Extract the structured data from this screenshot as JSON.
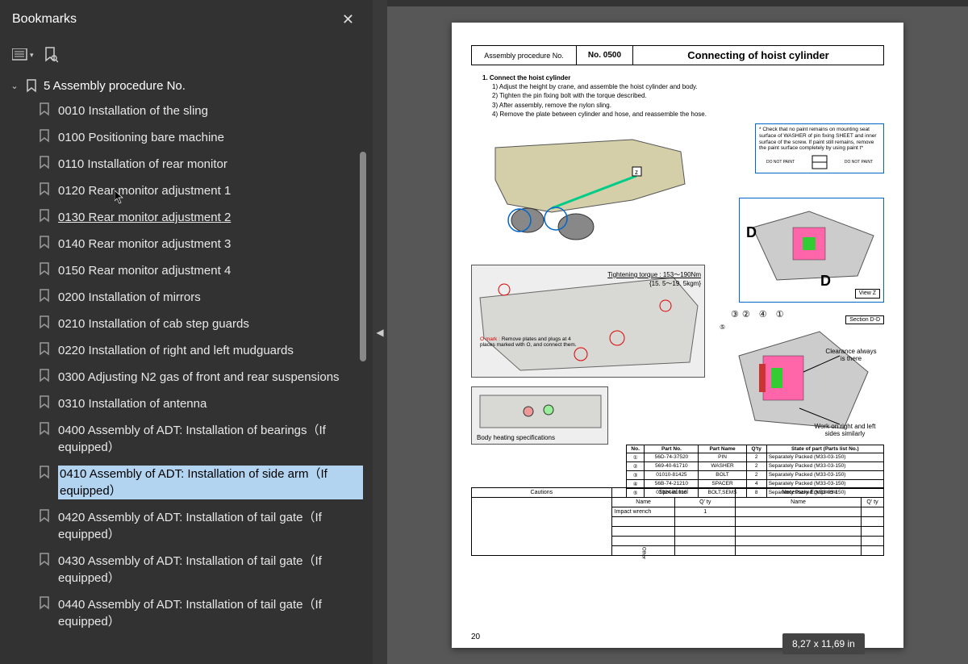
{
  "sidebar": {
    "title": "Bookmarks",
    "section": "5 Assembly procedure No.",
    "active_index": 11,
    "items": [
      {
        "label": "0010 Installation of the sling"
      },
      {
        "label": "0100 Positioning bare machine"
      },
      {
        "label": "0110 Installation of rear monitor"
      },
      {
        "label": "0120 Rear monitor adjustment 1"
      },
      {
        "label": "0130 Rear monitor adjustment 2",
        "hover": true
      },
      {
        "label": "0140 Rear monitor adjustment 3"
      },
      {
        "label": "0150 Rear monitor adjustment 4"
      },
      {
        "label": "0200 Installation of mirrors"
      },
      {
        "label": "0210 Installation of cab step guards"
      },
      {
        "label": "0220 Installation of right and left mudguards"
      },
      {
        "label": "0300 Adjusting N2 gas of front and rear suspensions"
      },
      {
        "label": "0310 Installation of antenna"
      },
      {
        "label": "0400 Assembly of ADT: Installation of bearings（If equipped）"
      },
      {
        "label": "0410 Assembly of ADT: Installation of side arm（If equipped）",
        "selected": true
      },
      {
        "label": "0420 Assembly of ADT: Installation of tail gate（If equipped）"
      },
      {
        "label": "0430 Assembly of ADT: Installation of tail gate（If equipped）"
      },
      {
        "label": "0440 Assembly of ADT: Installation of tail gate（If equipped）"
      }
    ]
  },
  "page": {
    "header": {
      "proc_label": "Assembly procedure No.",
      "proc_no": "No. 0500",
      "title": "Connecting of hoist cylinder"
    },
    "step_heading": "1. Connect the hoist cylinder",
    "steps": [
      "1) Adjust the height by crane, and assemble the hoist cylinder and body.",
      "2) Tighten the pin fixing bolt with the torque described.",
      "3) After assembly, remove the nylon sling.",
      "4) Remove the plate between cylinder and hose, and reassemble the hose."
    ],
    "note_paint": "* Check that no paint remains on mounting seat surface of WASHER of pin fixing SHEET and inner surface of the screw. If paint still remains, remove the paint surface completely by using paint t*",
    "no_paint": "DO NOT PAINT",
    "torque": {
      "label": "Tightening torque : 153～190Nm",
      "sub": "{15. 5～19. 5kgm}"
    },
    "o_mark": {
      "label": "O mark :",
      "body": "Remove plates and plugs at 4 places marked with O, and connect them."
    },
    "view_z": "View Z",
    "section_dd": "Section D-D",
    "clearance": "Clearance always is there",
    "work_both": "Work on right and left sides similarly",
    "body_heating": "Body heating specifications",
    "letter_z": "Z",
    "letter_d": "D",
    "callout_nums": [
      "①",
      "②",
      "③",
      "④",
      "⑤"
    ],
    "callout_row": "③② ④ ①",
    "callout_5": "⑤",
    "parts": {
      "headers": [
        "No.",
        "Part No.",
        "Part Name",
        "Q'ty",
        "State of part (Parts list No.)"
      ],
      "rows": [
        [
          "①",
          "56D-74-37520",
          "PIN",
          "2",
          "Separately Packed (M33-03-150)"
        ],
        [
          "②",
          "569-40-61710",
          "WASHER",
          "2",
          "Separately Packed (M33-03-150)"
        ],
        [
          "③",
          "01010-81425",
          "BOLT",
          "2",
          "Separately Packed (M33-03-150)"
        ],
        [
          "④",
          "56B-74-21210",
          "SPACER",
          "4",
          "Separately Packed (M33-03-150)"
        ],
        [
          "⑤",
          "01024-81016",
          "BOLT,SEMS",
          "8",
          "Separately Packed (M33-03-150)"
        ]
      ]
    },
    "bottom": {
      "cautions": "Cautions",
      "special_tool": "Special tool",
      "necessary": "Necessary Equipment",
      "name": "Name",
      "qty": "Q' ty",
      "tool_row": {
        "name": "Impact wrench",
        "qty": "1"
      },
      "other": "Other"
    },
    "number": "20"
  },
  "status": {
    "dimensions": "8,27 x 11,69 in"
  },
  "colors": {
    "sidebar_bg": "#323232",
    "doc_bg": "#575757",
    "select_bg": "#b3d4f0",
    "blue": "#0066cc",
    "pink": "#ff66aa",
    "green": "#33cc33",
    "truck": "#d4cfa8"
  }
}
